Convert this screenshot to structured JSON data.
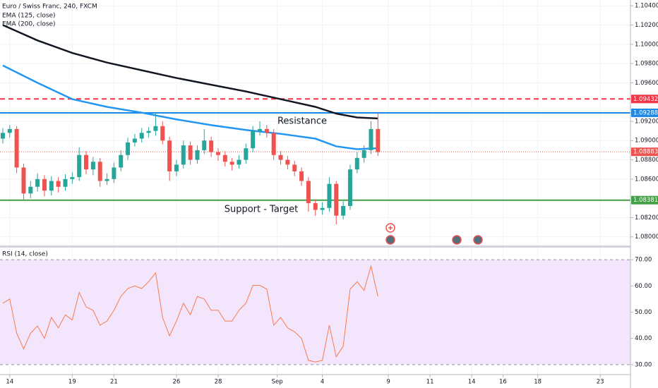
{
  "chart_data": [
    {
      "type": "candlestick",
      "title": "Euro / Swiss Franc, 240, FXCM",
      "x": [
        -2,
        0,
        2,
        4,
        6,
        8,
        10,
        12,
        14,
        16,
        18,
        20,
        22,
        24,
        26,
        28,
        30,
        32,
        34,
        36,
        38,
        40,
        42,
        44,
        46,
        48,
        50,
        52,
        54,
        56,
        58,
        60,
        62,
        64,
        66,
        68,
        70,
        72,
        74,
        76,
        78,
        80,
        82,
        84,
        86,
        88,
        90,
        92,
        94,
        96,
        98,
        100,
        102,
        104,
        106
      ],
      "open": [
        1.0902,
        1.0908,
        1.0912,
        1.0872,
        1.0845,
        1.0852,
        1.086,
        1.0848,
        1.0858,
        1.0852,
        1.086,
        1.0862,
        1.0885,
        1.087,
        1.0878,
        1.0858,
        1.086,
        1.0872,
        1.0885,
        1.0898,
        1.0902,
        1.0908,
        1.091,
        1.0915,
        1.09,
        1.0868,
        1.0875,
        1.0895,
        1.088,
        1.089,
        1.09,
        1.0888,
        1.0885,
        1.0878,
        1.0875,
        1.088,
        1.0892,
        1.091,
        1.0912,
        1.0908,
        1.0885,
        1.088,
        1.0875,
        1.0868,
        1.0858,
        1.0835,
        1.0828,
        1.083,
        1.0855,
        1.0822,
        1.0832,
        1.087,
        1.0882,
        1.089,
        1.0912
      ],
      "high": [
        1.0913,
        1.0916,
        1.0915,
        1.0876,
        1.0858,
        1.0866,
        1.0864,
        1.0863,
        1.0862,
        1.0865,
        1.0867,
        1.0893,
        1.0889,
        1.0883,
        1.0882,
        1.0866,
        1.0877,
        1.089,
        1.0903,
        1.0907,
        1.0913,
        1.0914,
        1.0929,
        1.092,
        1.0904,
        1.088,
        1.09,
        1.0899,
        1.0895,
        1.0912,
        1.0904,
        1.0892,
        1.0889,
        1.0882,
        1.0885,
        1.0897,
        1.0915,
        1.092,
        1.0916,
        1.0912,
        1.0889,
        1.0884,
        1.0879,
        1.0872,
        1.0862,
        1.0839,
        1.0836,
        1.0862,
        1.0858,
        1.0837,
        1.0875,
        1.0888,
        1.0895,
        1.092,
        1.0929
      ],
      "low": [
        1.0897,
        1.0903,
        1.0866,
        1.0839,
        1.084,
        1.0847,
        1.0842,
        1.0843,
        1.0846,
        1.0848,
        1.0855,
        1.0858,
        1.0865,
        1.0864,
        1.0852,
        1.0854,
        1.0856,
        1.0868,
        1.088,
        1.0894,
        1.0898,
        1.0903,
        1.0905,
        1.0896,
        1.0858,
        1.0863,
        1.0871,
        1.0875,
        1.0876,
        1.0886,
        1.0883,
        1.0879,
        1.0873,
        1.0869,
        1.0871,
        1.0876,
        1.0888,
        1.0905,
        1.0903,
        1.088,
        1.0875,
        1.087,
        1.0863,
        1.0853,
        1.0826,
        1.0822,
        1.0823,
        1.0826,
        1.0813,
        1.0818,
        1.0828,
        1.0866,
        1.0877,
        1.0886,
        1.0884
      ],
      "close": [
        1.0908,
        1.0912,
        1.0872,
        1.0845,
        1.0852,
        1.086,
        1.0848,
        1.0858,
        1.0852,
        1.086,
        1.0862,
        1.0885,
        1.087,
        1.0878,
        1.0858,
        1.086,
        1.0872,
        1.0885,
        1.0898,
        1.0902,
        1.0908,
        1.091,
        1.0915,
        1.09,
        1.0868,
        1.0875,
        1.0895,
        1.088,
        1.089,
        1.09,
        1.0888,
        1.0885,
        1.0878,
        1.0875,
        1.088,
        1.0892,
        1.091,
        1.0912,
        1.0908,
        1.0885,
        1.088,
        1.0875,
        1.0868,
        1.0858,
        1.0835,
        1.0828,
        1.083,
        1.0855,
        1.0822,
        1.0832,
        1.087,
        1.0882,
        1.089,
        1.0912,
        1.0888
      ],
      "up_color": "#26a69a",
      "down_color": "#ef5350",
      "lines": [
        {
          "name": "EMA (125, close)",
          "color": "#2196f3",
          "x": [
            -2,
            8,
            18,
            28,
            38,
            48,
            58,
            68,
            78,
            88,
            94,
            100,
            106
          ],
          "values": [
            1.0978,
            1.096,
            1.0943,
            1.0935,
            1.0929,
            1.0922,
            1.0916,
            1.0911,
            1.0907,
            1.0902,
            1.0894,
            1.0891,
            1.0892
          ]
        },
        {
          "name": "EMA (200, close)",
          "color": "#131722",
          "x": [
            -2,
            8,
            18,
            28,
            38,
            48,
            58,
            68,
            78,
            88,
            94,
            100,
            106
          ],
          "values": [
            1.102,
            1.1004,
            1.0991,
            1.0981,
            1.0973,
            1.0965,
            1.0958,
            1.0951,
            1.0943,
            1.0935,
            1.0928,
            1.0924,
            1.0923
          ]
        }
      ],
      "hlines": [
        {
          "value": 1.09432,
          "label": "1.09432",
          "color": "#f23645",
          "style": "dashed"
        },
        {
          "value": 1.09288,
          "label": "1.09288",
          "color": "#1e88e5",
          "style": "solid"
        },
        {
          "value": 1.08883,
          "label": "1.08883",
          "color": "#ef5350",
          "style": "dotted"
        },
        {
          "value": 1.08381,
          "label": "1.08381",
          "color": "#43a047",
          "style": "solid"
        }
      ],
      "annotations": [
        {
          "text": "Resistance",
          "color": "#1e88e5"
        },
        {
          "text": "Support - Target",
          "color": "#43a047"
        }
      ],
      "xlim": [
        -2.8,
        178.7
      ],
      "ylim": [
        1.0791,
        1.1046
      ],
      "yticks": [
        {
          "value": 1.104,
          "label": "1.10400"
        },
        {
          "value": 1.102,
          "label": "1.10200"
        },
        {
          "value": 1.1,
          "label": "1.10000"
        },
        {
          "value": 1.098,
          "label": "1.09800"
        },
        {
          "value": 1.096,
          "label": "1.09600"
        },
        {
          "value": 1.092,
          "label": "1.09200"
        },
        {
          "value": 1.09,
          "label": "1.09000"
        },
        {
          "value": 1.088,
          "label": "1.08800"
        },
        {
          "value": 1.086,
          "label": "1.08600"
        },
        {
          "value": 1.082,
          "label": "1.08200"
        },
        {
          "value": 1.08,
          "label": "1.08000"
        }
      ],
      "grid": true
    },
    {
      "type": "line",
      "title": "RSI (14, close)",
      "color": "#f57c4f",
      "band": [
        30,
        70
      ],
      "band_color": "#f3e5fb",
      "values": [
        53.4,
        55,
        42,
        36,
        42,
        44.7,
        40,
        48,
        44,
        49,
        47,
        57.5,
        52,
        50.7,
        45,
        46.6,
        50.7,
        56,
        59,
        60,
        59,
        61.6,
        65,
        48,
        41,
        46.6,
        53.4,
        49,
        56,
        55,
        50.7,
        50.7,
        46.6,
        46.6,
        50.7,
        53.4,
        60.2,
        60.2,
        58.8,
        45,
        48,
        44,
        42.5,
        40,
        31.6,
        31,
        31.6,
        45,
        33,
        37,
        58.8,
        61.6,
        58.3,
        67.5,
        56
      ],
      "ylim": [
        26.2,
        74.6
      ],
      "yticks": [
        {
          "value": 70,
          "label": "70.00"
        },
        {
          "value": 60,
          "label": "60.00"
        },
        {
          "value": 50,
          "label": "50.00"
        },
        {
          "value": 40,
          "label": "40.00"
        },
        {
          "value": 30,
          "label": "30.00"
        }
      ],
      "xticks": [
        {
          "value": 0,
          "label": "14"
        },
        {
          "value": 18,
          "label": "19"
        },
        {
          "value": 30,
          "label": "21"
        },
        {
          "value": 48,
          "label": "26"
        },
        {
          "value": 60,
          "label": "28"
        },
        {
          "value": 77,
          "label": "Sep"
        },
        {
          "value": 90,
          "label": "4"
        },
        {
          "value": 109,
          "label": "9"
        },
        {
          "value": 121,
          "label": "11"
        },
        {
          "value": 133,
          "label": "14"
        },
        {
          "value": 142,
          "label": "16"
        },
        {
          "value": 152,
          "label": "18"
        },
        {
          "value": 170,
          "label": "23"
        }
      ]
    }
  ]
}
